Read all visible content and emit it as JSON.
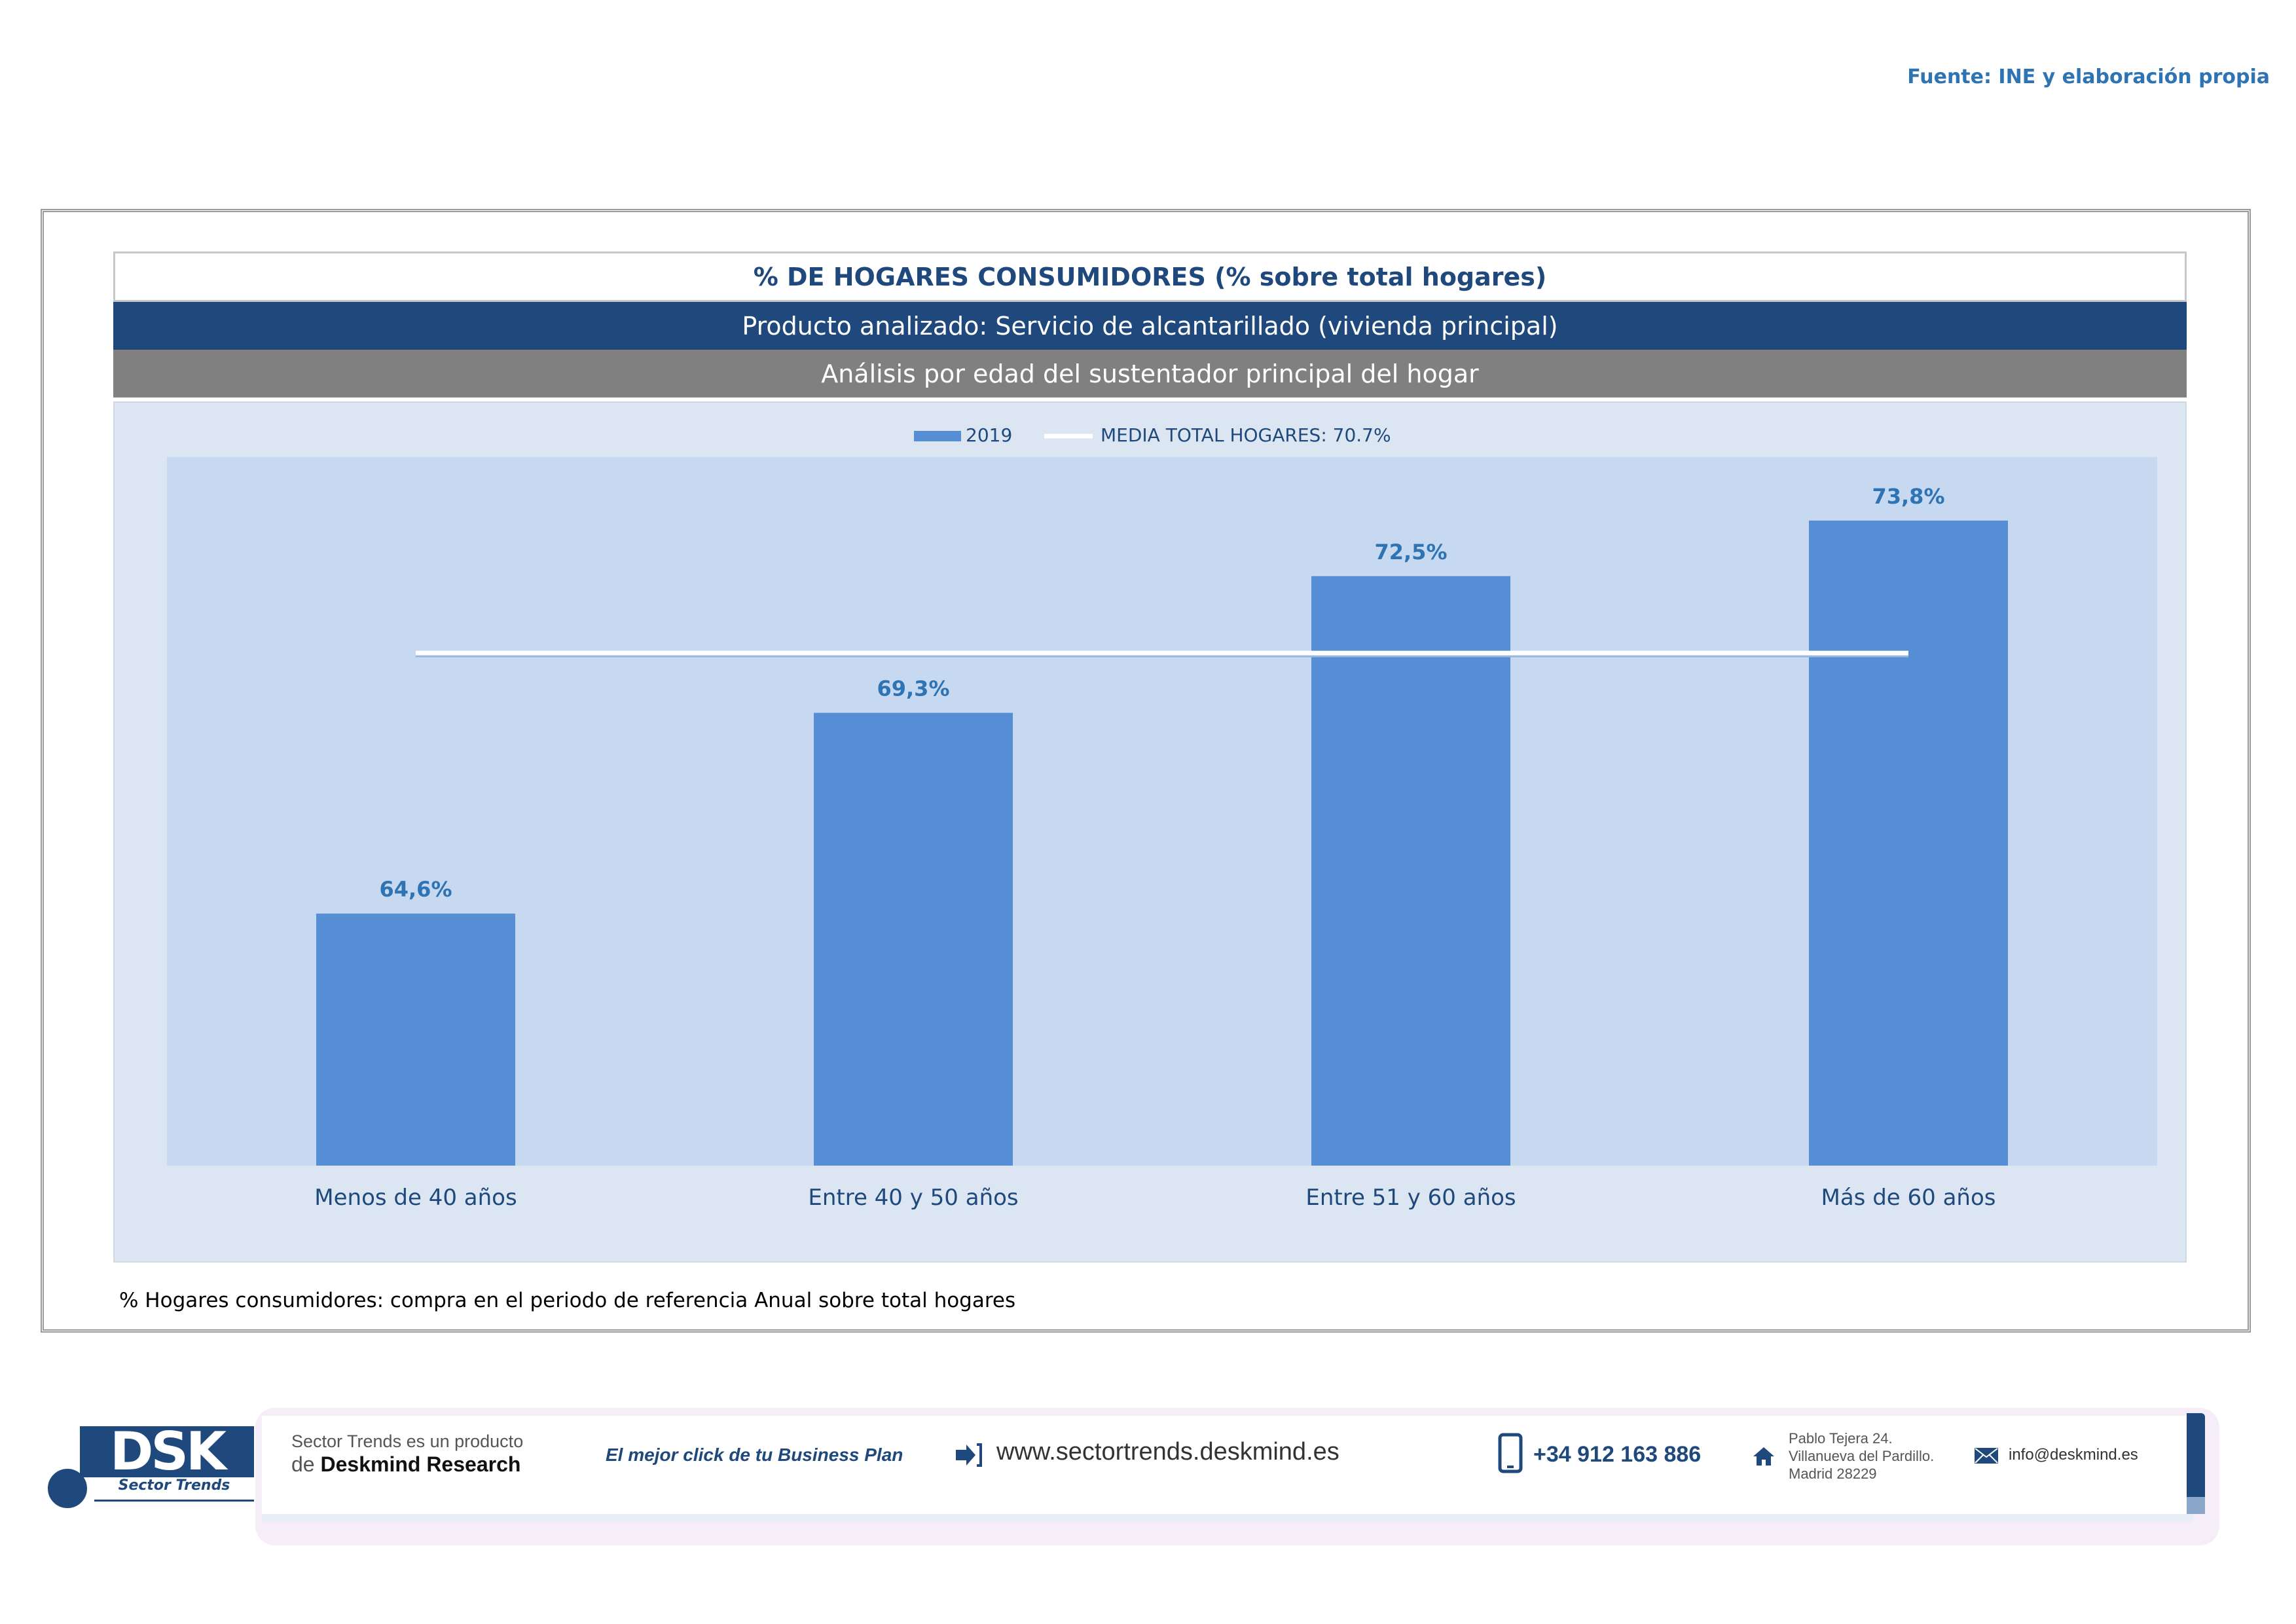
{
  "source_label": "Fuente: INE y elaboración propia",
  "header": {
    "title": "% DE HOGARES CONSUMIDORES (% sobre total hogares)",
    "product": "Producto analizado: Servicio de alcantarillado (vivienda principal)",
    "analysis": "Análisis por edad del sustentador principal del hogar"
  },
  "chart_data": {
    "type": "bar",
    "categories": [
      "Menos de 40 años",
      "Entre 40 y 50 años",
      "Entre 51  y 60 años",
      "Más de 60 años"
    ],
    "series": [
      {
        "name": "2019",
        "values": [
          64.6,
          69.3,
          72.5,
          73.8
        ],
        "labels": [
          "64,6%",
          "69,3%",
          "72,5%",
          "73,8%"
        ],
        "color": "#558ed5"
      }
    ],
    "reference_line": {
      "name": "MEDIA TOTAL  HOGARES:  70.7%",
      "value": 70.7,
      "color": "#ffffff"
    },
    "ylim": [
      60,
      75
    ],
    "legend_position": "top-center",
    "colors": {
      "plot_bg": "#c6d9f0",
      "area_bg": "#dce6f2",
      "label": "#2e74b5",
      "axis_text": "#1f497d"
    }
  },
  "note": "% Hogares consumidores: compra en el periodo de referencia Anual sobre total hogares",
  "footer": {
    "logo_text": "DSK",
    "logo_subtitle": "Sector Trends",
    "tagline_line1": "Sector Trends es un producto",
    "tagline_prefix": "de",
    "tagline_brand": "Deskmind Research",
    "slogan": "El mejor click de tu Business Plan",
    "website": "www.sectortrends.deskmind.es",
    "phone": "+34 912 163 886",
    "address_line1": "Pablo Tejera 24.",
    "address_line2": "Villanueva del Pardillo.",
    "address_line3": "Madrid 28229",
    "email": "info@deskmind.es"
  }
}
